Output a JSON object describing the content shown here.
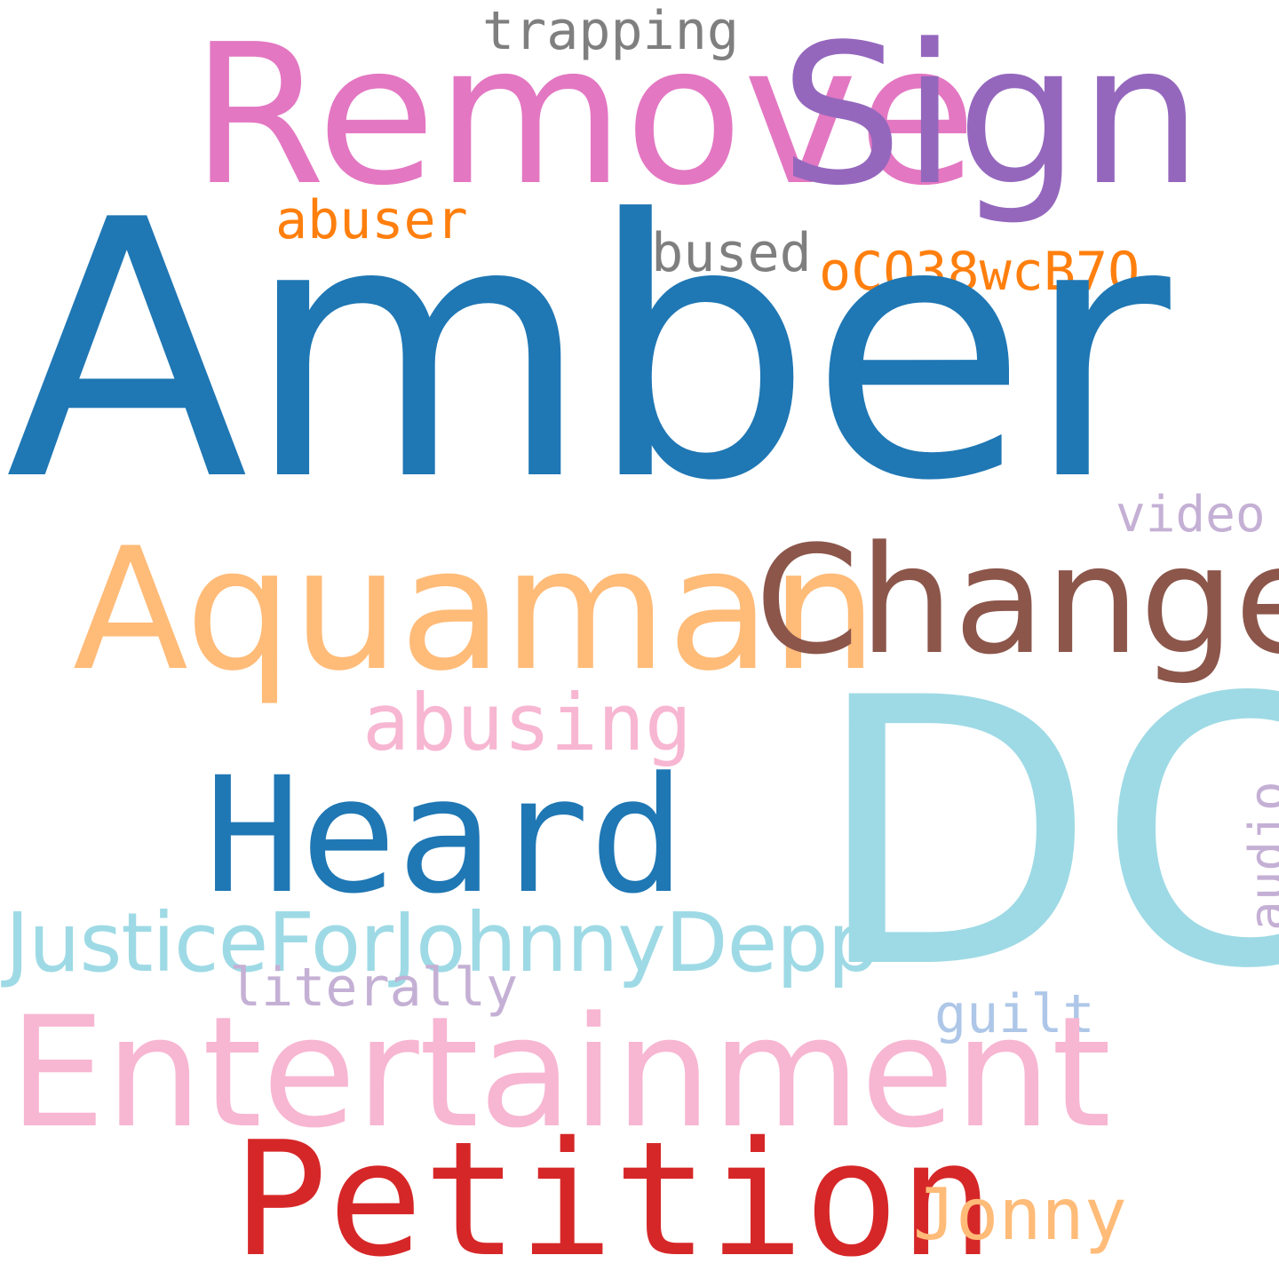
{
  "words": {
    "amber": {
      "text": "Amber",
      "color": "#1f77b4"
    },
    "dc": {
      "text": "DC",
      "color": "#9edae5"
    },
    "remove": {
      "text": "Remove",
      "color": "#e377c2"
    },
    "sign": {
      "text": "Sign",
      "color": "#9467bd"
    },
    "aquaman": {
      "text": "Aquaman",
      "color": "#ffbb78"
    },
    "change": {
      "text": "Change",
      "color": "#8c564b"
    },
    "heard": {
      "text": "Heard",
      "color": "#1f77b4"
    },
    "entertainment": {
      "text": "Entertainment",
      "color": "#f7b6d2"
    },
    "petition": {
      "text": "Petition",
      "color": "#d62728"
    },
    "justice": {
      "text": "JusticeForJohnnyDepp",
      "color": "#9edae5"
    },
    "abusing": {
      "text": "abusing",
      "color": "#f7b6d2"
    },
    "abuser": {
      "text": "abuser",
      "color": "#ff7f0e"
    },
    "abused": {
      "text": "abused",
      "color": "#7f7f7f"
    },
    "ocq": {
      "text": "oCQ38wcB7Q",
      "color": "#ff7f0e"
    },
    "trapping": {
      "text": "trapping",
      "color": "#7f7f7f"
    },
    "video": {
      "text": "video",
      "color": "#c5b0d5"
    },
    "audio": {
      "text": "audio",
      "color": "#c5b0d5"
    },
    "literally": {
      "text": "literally",
      "color": "#c5b0d5"
    },
    "guilt": {
      "text": "guilt",
      "color": "#aec7e8"
    },
    "jonny": {
      "text": "Jonny",
      "color": "#ffbb78"
    }
  }
}
